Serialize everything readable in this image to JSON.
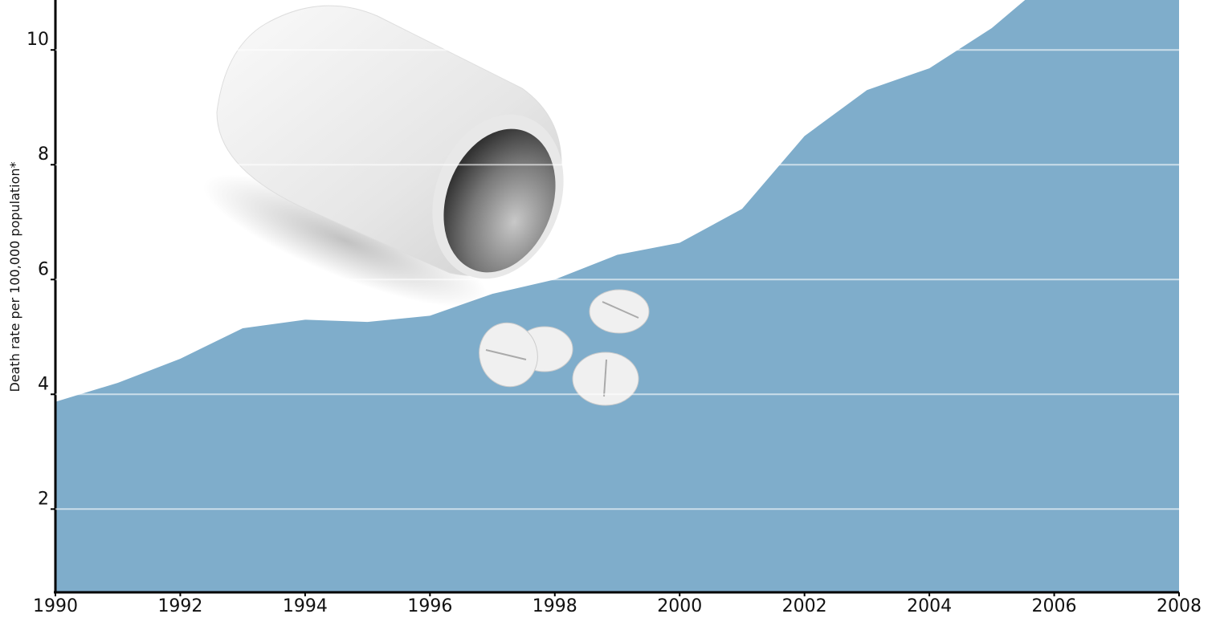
{
  "chart_data": {
    "type": "area",
    "y_label": "Death rate per 100,000 population*",
    "x": [
      1990,
      1991,
      1992,
      1993,
      1994,
      1995,
      1996,
      1997,
      1998,
      1999,
      2000,
      2001,
      2002,
      2003,
      2004,
      2005,
      2006,
      2007,
      2008
    ],
    "values": [
      3.87,
      4.2,
      4.62,
      5.15,
      5.3,
      5.26,
      5.37,
      5.75,
      6.0,
      6.43,
      6.64,
      7.23,
      8.5,
      9.3,
      9.68,
      10.38,
      11.3,
      11.5,
      11.7
    ],
    "color": "#7fadcb",
    "xlim": [
      1990,
      2008
    ],
    "xticks": [
      1990,
      1992,
      1994,
      1996,
      1998,
      2000,
      2002,
      2004,
      2006,
      2008
    ],
    "ylim": [
      0.55,
      10.87
    ],
    "yticks": [
      2,
      4,
      6,
      8,
      10
    ],
    "grid": true
  }
}
